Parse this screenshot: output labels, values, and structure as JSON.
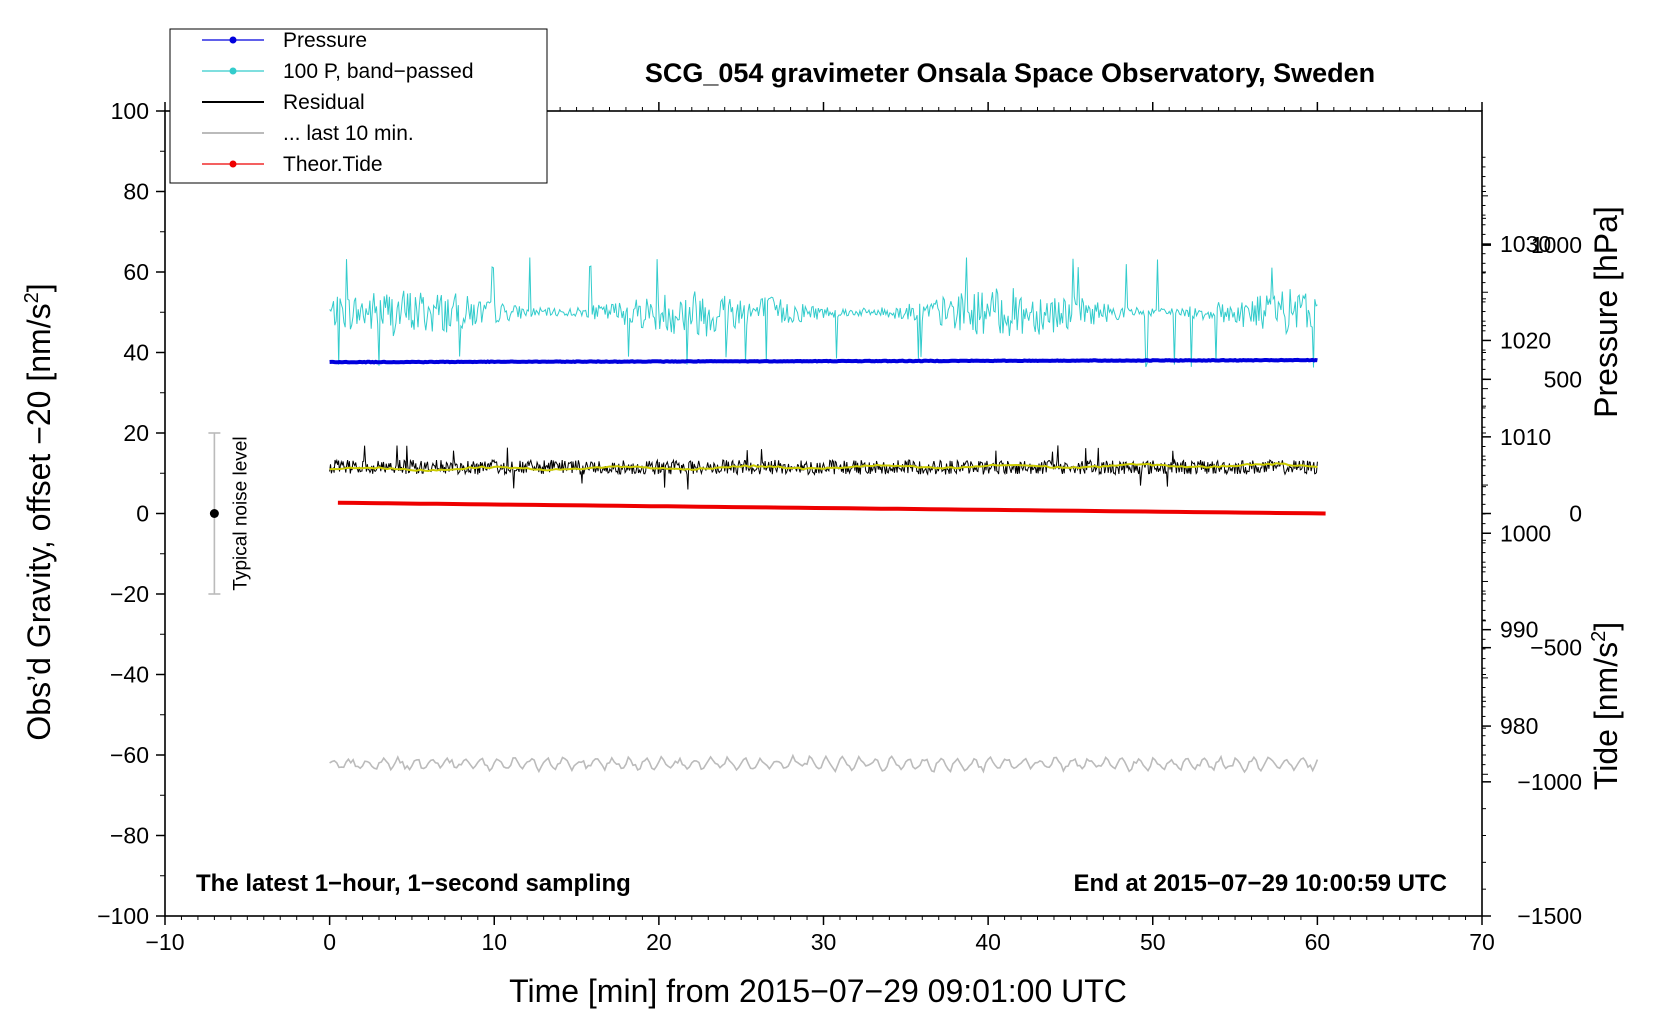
{
  "chart_data": {
    "type": "line",
    "title": "SCG_054 gravimeter Onsala Space Observatory, Sweden",
    "xlabel": "Time [min] from 2015−07−29 09:01:00 UTC",
    "ylabel": "Obs’d Gravity, offset −20 [nm/s",
    "ylabel_sup": "2",
    "ylabel_close": "]",
    "y2_pressure_label": "Pressure [hPa]",
    "y2_tide_label": "Tide [nm/s",
    "y2_tide_sup": "2",
    "y2_tide_close": "]",
    "xlim": [
      -10,
      70
    ],
    "ylim": [
      -100,
      100
    ],
    "xticks": [
      {
        "v": -10,
        "label": "−10"
      },
      {
        "v": 0,
        "label": "0"
      },
      {
        "v": 10,
        "label": "10"
      },
      {
        "v": 20,
        "label": "20"
      },
      {
        "v": 30,
        "label": "30"
      },
      {
        "v": 40,
        "label": "40"
      },
      {
        "v": 50,
        "label": "50"
      },
      {
        "v": 60,
        "label": "60"
      },
      {
        "v": 70,
        "label": "70"
      }
    ],
    "yticks": [
      {
        "v": 100,
        "label": "100"
      },
      {
        "v": 80,
        "label": "80"
      },
      {
        "v": 60,
        "label": "60"
      },
      {
        "v": 40,
        "label": "40"
      },
      {
        "v": 20,
        "label": "20"
      },
      {
        "v": 0,
        "label": "0"
      },
      {
        "v": -20,
        "label": "−20"
      },
      {
        "v": -40,
        "label": "−40"
      },
      {
        "v": -60,
        "label": "−60"
      },
      {
        "v": -80,
        "label": "−80"
      },
      {
        "v": -100,
        "label": "−100"
      }
    ],
    "pressure_axis": {
      "ylim": [
        960.3,
        1043.8
      ],
      "ticks": [
        {
          "v": 1030,
          "label": "1030"
        },
        {
          "v": 1020,
          "label": "1020"
        },
        {
          "v": 1010,
          "label": "1010"
        },
        {
          "v": 1000,
          "label": "1000"
        },
        {
          "v": 990,
          "label": "990"
        },
        {
          "v": 980,
          "label": "980"
        }
      ]
    },
    "tide_axis": {
      "ylim": [
        -1500,
        1500
      ],
      "ticks": [
        {
          "v": 1000,
          "label": "1000"
        },
        {
          "v": 500,
          "label": "500"
        },
        {
          "v": 0,
          "label": "0"
        },
        {
          "v": -500,
          "label": "−500"
        },
        {
          "v": -1000,
          "label": "−1000"
        },
        {
          "v": -1500,
          "label": "−1500"
        }
      ]
    },
    "legend": [
      {
        "name": "Pressure",
        "color": "#0000dd",
        "marker": true
      },
      {
        "name": "100 P, band−passed",
        "color": "#33cccc",
        "marker": true
      },
      {
        "name": "Residual",
        "color": "#000000",
        "marker": false
      },
      {
        "name": "... last 10 min.",
        "color": "#bbbbbb",
        "marker": false
      },
      {
        "name": "Theor.Tide",
        "color": "#ee0000",
        "marker": true
      }
    ],
    "series": [
      {
        "name": "Pressure",
        "axis": "gravity",
        "color": "#0000dd",
        "x_range": [
          0,
          60
        ],
        "start": 37.6,
        "end": 38.1,
        "noise": 0.15
      },
      {
        "name": "100 P, band−passed",
        "axis": "gravity",
        "color": "#33cccc",
        "x_range": [
          0,
          60
        ],
        "mean": 50,
        "amplitude": 5,
        "min": 30.4,
        "max": 63.6
      },
      {
        "name": "Residual",
        "axis": "gravity",
        "color": "#000000",
        "x_range": [
          0,
          60
        ],
        "mean": 11.5,
        "amplitude": 1.8,
        "min": 5,
        "max": 17
      },
      {
        "name": "Residual (smoothed)",
        "axis": "gravity",
        "color": "#cccc00",
        "x_range": [
          0,
          60
        ],
        "start": 11,
        "end": 12
      },
      {
        "name": "Theor.Tide",
        "axis": "tide",
        "color": "#ee0000",
        "x_range": [
          0.5,
          60.5
        ],
        "start": 40,
        "end": 0
      },
      {
        "name": "... last 10 min.",
        "axis": "gravity",
        "color": "#bbbbbb",
        "x_range": [
          0,
          60
        ],
        "mean": -62.2,
        "amplitude": 1.3,
        "min": -66,
        "max": -59
      }
    ],
    "noise_level": {
      "label": "Typical noise level",
      "x": -7,
      "center": 0,
      "low": -20,
      "high": 20
    },
    "annotations": {
      "bottom_left": "The latest 1−hour, 1−second sampling",
      "bottom_right": "End at 2015−07−29 10:00:59 UTC"
    }
  }
}
